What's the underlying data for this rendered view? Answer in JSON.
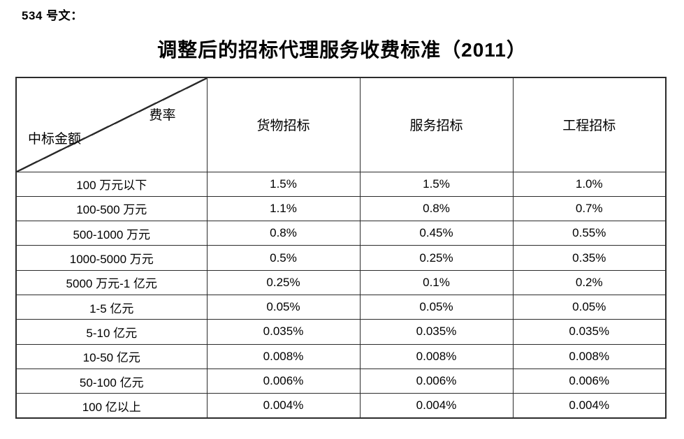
{
  "doc_label": "534 号文：",
  "title": "调整后的招标代理服务收费标准（2011）",
  "table": {
    "corner": {
      "top_label": "费率",
      "bottom_label": "中标金额"
    },
    "columns": [
      "货物招标",
      "服务招标",
      "工程招标"
    ],
    "rows": [
      {
        "label": "100 万元以下",
        "values": [
          "1.5%",
          "1.5%",
          "1.0%"
        ]
      },
      {
        "label": "100-500 万元",
        "values": [
          "1.1%",
          "0.8%",
          "0.7%"
        ]
      },
      {
        "label": "500-1000 万元",
        "values": [
          "0.8%",
          "0.45%",
          "0.55%"
        ]
      },
      {
        "label": "1000-5000 万元",
        "values": [
          "0.5%",
          "0.25%",
          "0.35%"
        ]
      },
      {
        "label": "5000 万元-1 亿元",
        "values": [
          "0.25%",
          "0.1%",
          "0.2%"
        ]
      },
      {
        "label": "1-5 亿元",
        "values": [
          "0.05%",
          "0.05%",
          "0.05%"
        ]
      },
      {
        "label": "5-10 亿元",
        "values": [
          "0.035%",
          "0.035%",
          "0.035%"
        ]
      },
      {
        "label": "10-50 亿元",
        "values": [
          "0.008%",
          "0.008%",
          "0.008%"
        ]
      },
      {
        "label": "50-100 亿元",
        "values": [
          "0.006%",
          "0.006%",
          "0.006%"
        ]
      },
      {
        "label": "100 亿以上",
        "values": [
          "0.004%",
          "0.004%",
          "0.004%"
        ]
      }
    ]
  },
  "colors": {
    "border": "#2b2b2b",
    "text": "#000000",
    "background": "#ffffff"
  }
}
